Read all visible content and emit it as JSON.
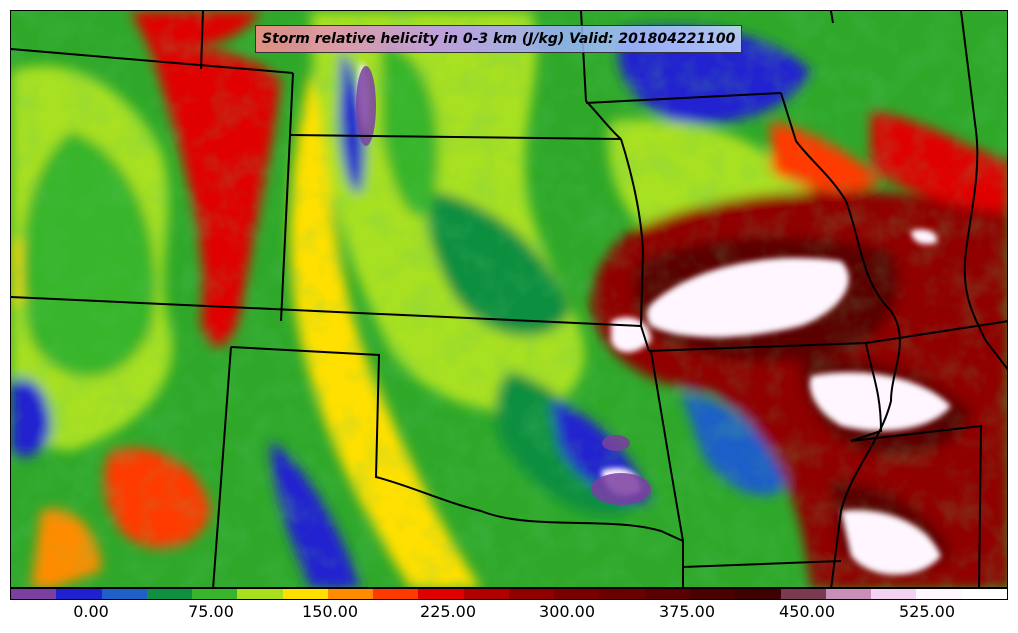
{
  "map": {
    "title": "Storm relative helicity in 0-3 km (J/kg) Valid: 201804221100",
    "variable": "Storm relative helicity",
    "layer": "0-3 km",
    "units": "J/kg",
    "valid_time": "201804221100"
  },
  "colorbar": {
    "colors": [
      "#7b3fa0",
      "#2020d0",
      "#1f5fc8",
      "#0f8f3f",
      "#38b52a",
      "#a8e020",
      "#ffe000",
      "#ff8c00",
      "#ff3a00",
      "#e00000",
      "#b00000",
      "#900000",
      "#7a0000",
      "#6a0000",
      "#5a0000",
      "#4a0000",
      "#3e0000",
      "#7a3a52",
      "#c890b8",
      "#f2d2f0",
      "#fff6ff",
      "#ffffff"
    ],
    "tick_labels": [
      "0.00",
      "75.00",
      "150.00",
      "225.00",
      "300.00",
      "375.00",
      "450.00",
      "525.00"
    ]
  }
}
